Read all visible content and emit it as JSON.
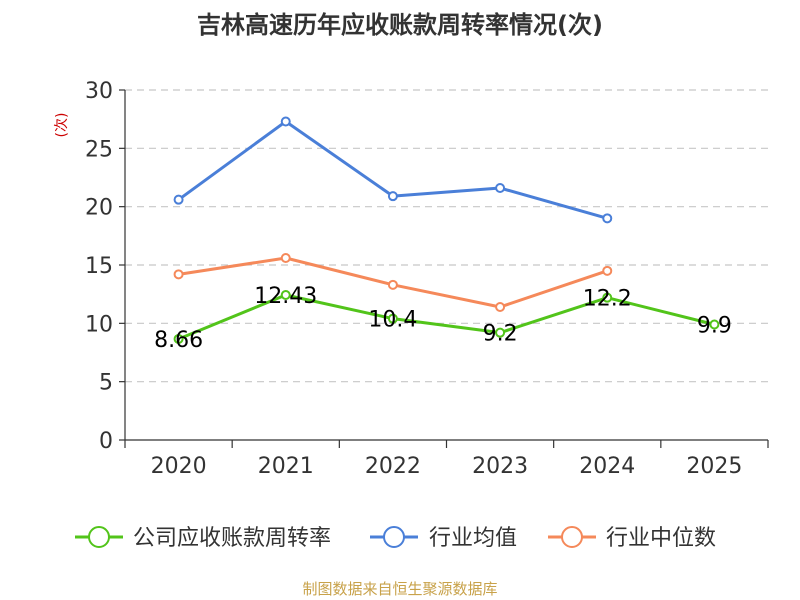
{
  "chart_data": {
    "type": "line",
    "title": "吉林高速历年应收账款周转率情况(次)",
    "ylabel": "(次)",
    "xlabel": "",
    "categories": [
      "2020",
      "2021",
      "2022",
      "2023",
      "2024",
      "2025"
    ],
    "y_ticks": [
      "0",
      "5",
      "10",
      "15",
      "20",
      "25",
      "30"
    ],
    "ylim": [
      0,
      30
    ],
    "grid": true,
    "legend_position": "bottom",
    "series": [
      {
        "name": "公司应收账款周转率",
        "color": "#52c41a",
        "values": [
          8.66,
          12.43,
          10.4,
          9.2,
          12.2,
          9.9
        ],
        "labels": [
          "8.66",
          "12.43",
          "10.4",
          "9.2",
          "12.2",
          "9.9"
        ]
      },
      {
        "name": "行业均值",
        "color": "#4a7fd8",
        "values": [
          20.6,
          27.3,
          20.9,
          21.6,
          19.0,
          null
        ]
      },
      {
        "name": "行业中位数",
        "color": "#f5895a",
        "values": [
          14.2,
          15.6,
          13.3,
          11.4,
          14.5,
          null
        ]
      }
    ],
    "source": "制图数据来自恒生聚源数据库"
  }
}
